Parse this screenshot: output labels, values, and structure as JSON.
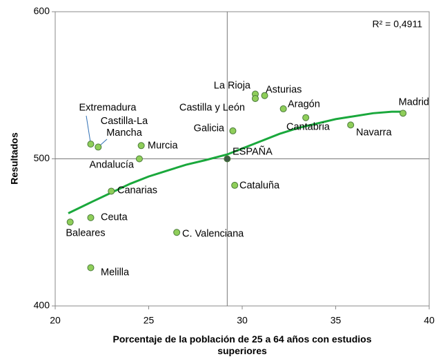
{
  "chart_data": {
    "type": "scatter",
    "x_label": "Porcentaje de la población de 25 a 64 años con estudios superiores",
    "y_label": "Resultados",
    "annotation": "R² = 0,4911",
    "xlim": [
      20,
      40
    ],
    "ylim": [
      400,
      600
    ],
    "xticks": [
      20,
      25,
      30,
      35,
      40
    ],
    "yticks": [
      400,
      500,
      600
    ],
    "reference_lines": {
      "x": 29.2,
      "y": 500
    },
    "labels": [
      "Baleares",
      "Ceuta",
      "Melilla",
      "Extremadura",
      "Castilla-La Mancha",
      "Canarias",
      "Murcia",
      "Andalucía",
      "C. Valenciana",
      "ESPAÑA",
      "Galicia",
      "Cataluña",
      "La Rioja",
      "Castilla y León",
      "Asturias",
      "Aragón",
      "Cantabria",
      "Navarra",
      "Madrid"
    ],
    "x": [
      20.8,
      21.9,
      21.9,
      21.9,
      22.3,
      23.0,
      24.6,
      24.5,
      26.5,
      29.2,
      29.5,
      29.6,
      30.7,
      30.7,
      31.2,
      32.2,
      33.4,
      35.8,
      38.6
    ],
    "y": [
      457,
      460,
      426,
      510,
      508,
      478,
      509,
      500,
      450,
      500,
      519,
      482,
      544,
      541,
      543,
      534,
      528,
      523,
      531
    ],
    "colors": [
      "#8fce5a",
      "#8fce5a",
      "#8fce5a",
      "#8fce5a",
      "#8fce5a",
      "#8fce5a",
      "#8fce5a",
      "#8fce5a",
      "#8fce5a",
      "#3d5a44",
      "#8fce5a",
      "#8fce5a",
      "#8fce5a",
      "#8fce5a",
      "#8fce5a",
      "#8fce5a",
      "#8fce5a",
      "#8fce5a",
      "#8fce5a"
    ],
    "trendline": {
      "color": "#1aa83c",
      "x": [
        20.7,
        22,
        23,
        24,
        25,
        26,
        27,
        28,
        29.2,
        30,
        31,
        32,
        33,
        34,
        35,
        36,
        37,
        38,
        38.6
      ],
      "y": [
        463,
        471,
        477,
        483,
        488,
        492,
        496,
        499,
        503,
        507,
        512,
        517,
        521,
        524,
        527,
        529,
        531,
        532,
        532
      ]
    }
  }
}
